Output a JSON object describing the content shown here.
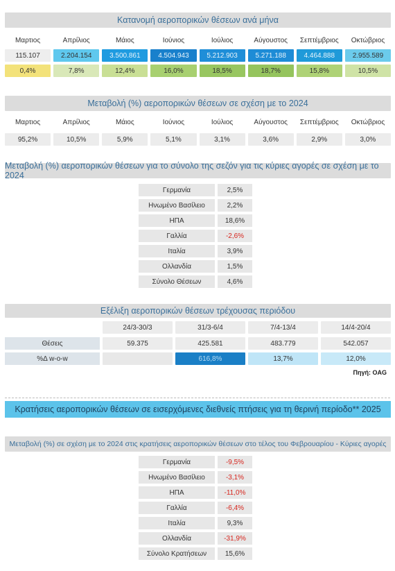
{
  "section1": {
    "title": "Κατανομή αεροπορικών θέσεων ανά μήνα",
    "months": [
      "Μαρτιος",
      "Απρίλιος",
      "Μάιος",
      "Ιούνιος",
      "Ιούλιος",
      "Αύγουστος",
      "Σεπτέμβριος",
      "Οκτώβριος"
    ],
    "seats": [
      "115.107",
      "2.204.154",
      "3.500.861",
      "4.504.943",
      "5.212.903",
      "5.271.188",
      "4.464.888",
      "2.955.589"
    ],
    "shares": [
      "0,4%",
      "7,8%",
      "12,4%",
      "16,0%",
      "18,5%",
      "18,7%",
      "15,8%",
      "10,5%"
    ],
    "seat_colors": [
      "#eeeeee",
      "#5fc8ee",
      "#1f9be0",
      "#1980cc",
      "#1f8ed8",
      "#1e8cd6",
      "#1f9ad9",
      "#6bcbec"
    ],
    "share_colors": [
      "#f3e27a",
      "#d9e8b8",
      "#c9df95",
      "#a8d070",
      "#98c660",
      "#95c45d",
      "#aed276",
      "#cfe3a6"
    ]
  },
  "section2": {
    "title": "Μεταβολή (%) αεροπορικών θέσεων σε σχέση με το 2024",
    "months": [
      "Μαρτιος",
      "Απρίλιος",
      "Μάιος",
      "Ιούνιος",
      "Ιούλιος",
      "Αύγουστος",
      "Σεπτέμβριος",
      "Οκτώβριος"
    ],
    "values": [
      "95,2%",
      "10,5%",
      "5,9%",
      "5,1%",
      "3,1%",
      "3,6%",
      "2,9%",
      "3,0%"
    ]
  },
  "section3": {
    "title": "Μεταβολή (%) αεροπορικών θέσεων για το σύνολο της σεζόν για τις κύριες αγορές σε σχέση με το 2024",
    "rows": [
      {
        "name": "Γερμανία",
        "value": "2,5%",
        "negative": false
      },
      {
        "name": "Ηνωμένο Βασίλειο",
        "value": "2,2%",
        "negative": false
      },
      {
        "name": "ΗΠΑ",
        "value": "18,6%",
        "negative": false
      },
      {
        "name": "Γαλλία",
        "value": "-2,6%",
        "negative": true
      },
      {
        "name": "Ιταλία",
        "value": "3,9%",
        "negative": false
      },
      {
        "name": "Ολλανδία",
        "value": "1,5%",
        "negative": false
      },
      {
        "name": "Σύνολο Θέσεων",
        "value": "4,6%",
        "negative": false
      }
    ]
  },
  "section4": {
    "title": "Εξέλιξη αεροπορικών θέσεων τρέχουσας περιόδου",
    "periods": [
      "24/3-30/3",
      "31/3-6/4",
      "7/4-13/4",
      "14/4-20/4"
    ],
    "seats_label": "Θέσεις",
    "seats": [
      "59.375",
      "425.581",
      "483.779",
      "542.057"
    ],
    "wow_label": "%Δ w-o-w",
    "wow": [
      "",
      "616,8%",
      "13,7%",
      "12,0%"
    ],
    "wow_colors": [
      "#e8e8e8",
      "#1a7fc6",
      "#bfe5f7",
      "#c8e9f8"
    ],
    "source": "Πηγή: OAG"
  },
  "section5": {
    "title": "Κρατήσεις αεροπορικών θέσεων σε εισερχόμενες διεθνείς πτήσεις για τη θερινή περίοδο** 2025"
  },
  "section6": {
    "title": "Μεταβολή (%) σε σχέση με το 2024 στις κρατήσεις αεροπορικών θέσεων στο τέλος του Φεβρουαρίου - Κύριες αγορές",
    "rows": [
      {
        "name": "Γερμανία",
        "value": "-9,5%",
        "negative": true
      },
      {
        "name": "Ηνωμένο Βασίλειο",
        "value": "-3,1%",
        "negative": true
      },
      {
        "name": "ΗΠΑ",
        "value": "-11,0%",
        "negative": true
      },
      {
        "name": "Γαλλία",
        "value": "-6,4%",
        "negative": true
      },
      {
        "name": "Ιταλία",
        "value": "9,3%",
        "negative": false
      },
      {
        "name": "Ολλανδία",
        "value": "-31,9%",
        "negative": true
      },
      {
        "name": "Σύνολο Κρατήσεων",
        "value": "15,6%",
        "negative": false
      }
    ]
  }
}
